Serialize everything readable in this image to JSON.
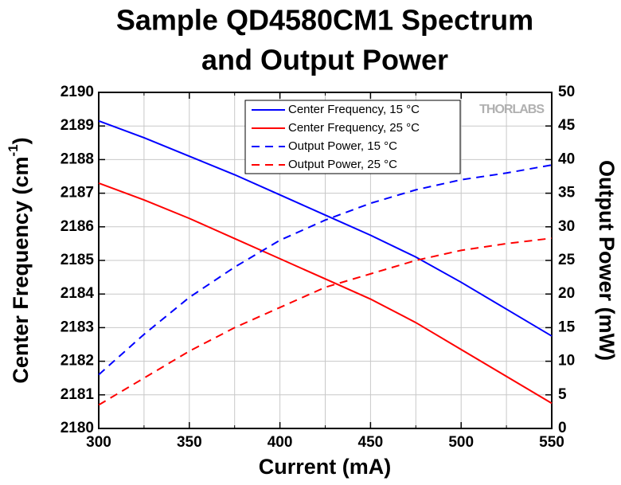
{
  "chart_data": {
    "type": "line",
    "title": [
      "Sample QD4580CM1 Spectrum",
      "and Output Power"
    ],
    "x_label": "Current (mA)",
    "y_label": {
      "text": "Center Frequency (cm",
      "superscript": "-1",
      "suffix": ")"
    },
    "y2_label": "Output Power (mW)",
    "watermark": "THORLABS",
    "x": [
      300,
      325,
      350,
      375,
      400,
      425,
      450,
      475,
      500,
      525,
      550
    ],
    "xlim": [
      300,
      550
    ],
    "xticks": [
      300,
      350,
      400,
      450,
      500,
      550
    ],
    "x_minor_ticks": [
      325,
      375,
      425,
      475,
      525
    ],
    "ylim": [
      2180,
      2190
    ],
    "yticks": [
      2180,
      2181,
      2182,
      2183,
      2184,
      2185,
      2186,
      2187,
      2188,
      2189,
      2190
    ],
    "y2lim": [
      0,
      50
    ],
    "y2ticks": [
      0,
      5,
      10,
      15,
      20,
      25,
      30,
      35,
      40,
      45,
      50
    ],
    "grid": true,
    "legend": "top-right",
    "series": [
      {
        "name": "Center Frequency, 15 °C",
        "color": "#0000ff",
        "dashed": false,
        "values": [
          2189.15,
          2188.65,
          2188.1,
          2187.55,
          2186.95,
          2186.35,
          2185.75,
          2185.1,
          2184.35,
          2183.55,
          2182.75
        ]
      },
      {
        "name": "Center Frequency, 25 °C",
        "color": "#ff0000",
        "dashed": false,
        "values": [
          2187.3,
          2186.8,
          2186.25,
          2185.65,
          2185.05,
          2184.45,
          2183.85,
          2183.15,
          2182.35,
          2181.55,
          2180.75
        ]
      },
      {
        "name": "Output Power, 15 °C",
        "color": "#0000ff",
        "dashed": true,
        "axis": "y2",
        "values": [
          8,
          14,
          19.5,
          24,
          28,
          31,
          33.5,
          35.5,
          37,
          38,
          39.2
        ]
      },
      {
        "name": "Output Power, 25 °C",
        "color": "#ff0000",
        "dashed": true,
        "axis": "y2",
        "values": [
          3.5,
          7.5,
          11.5,
          15,
          18,
          21,
          23,
          25,
          26.5,
          27.5,
          28.3
        ]
      }
    ]
  }
}
